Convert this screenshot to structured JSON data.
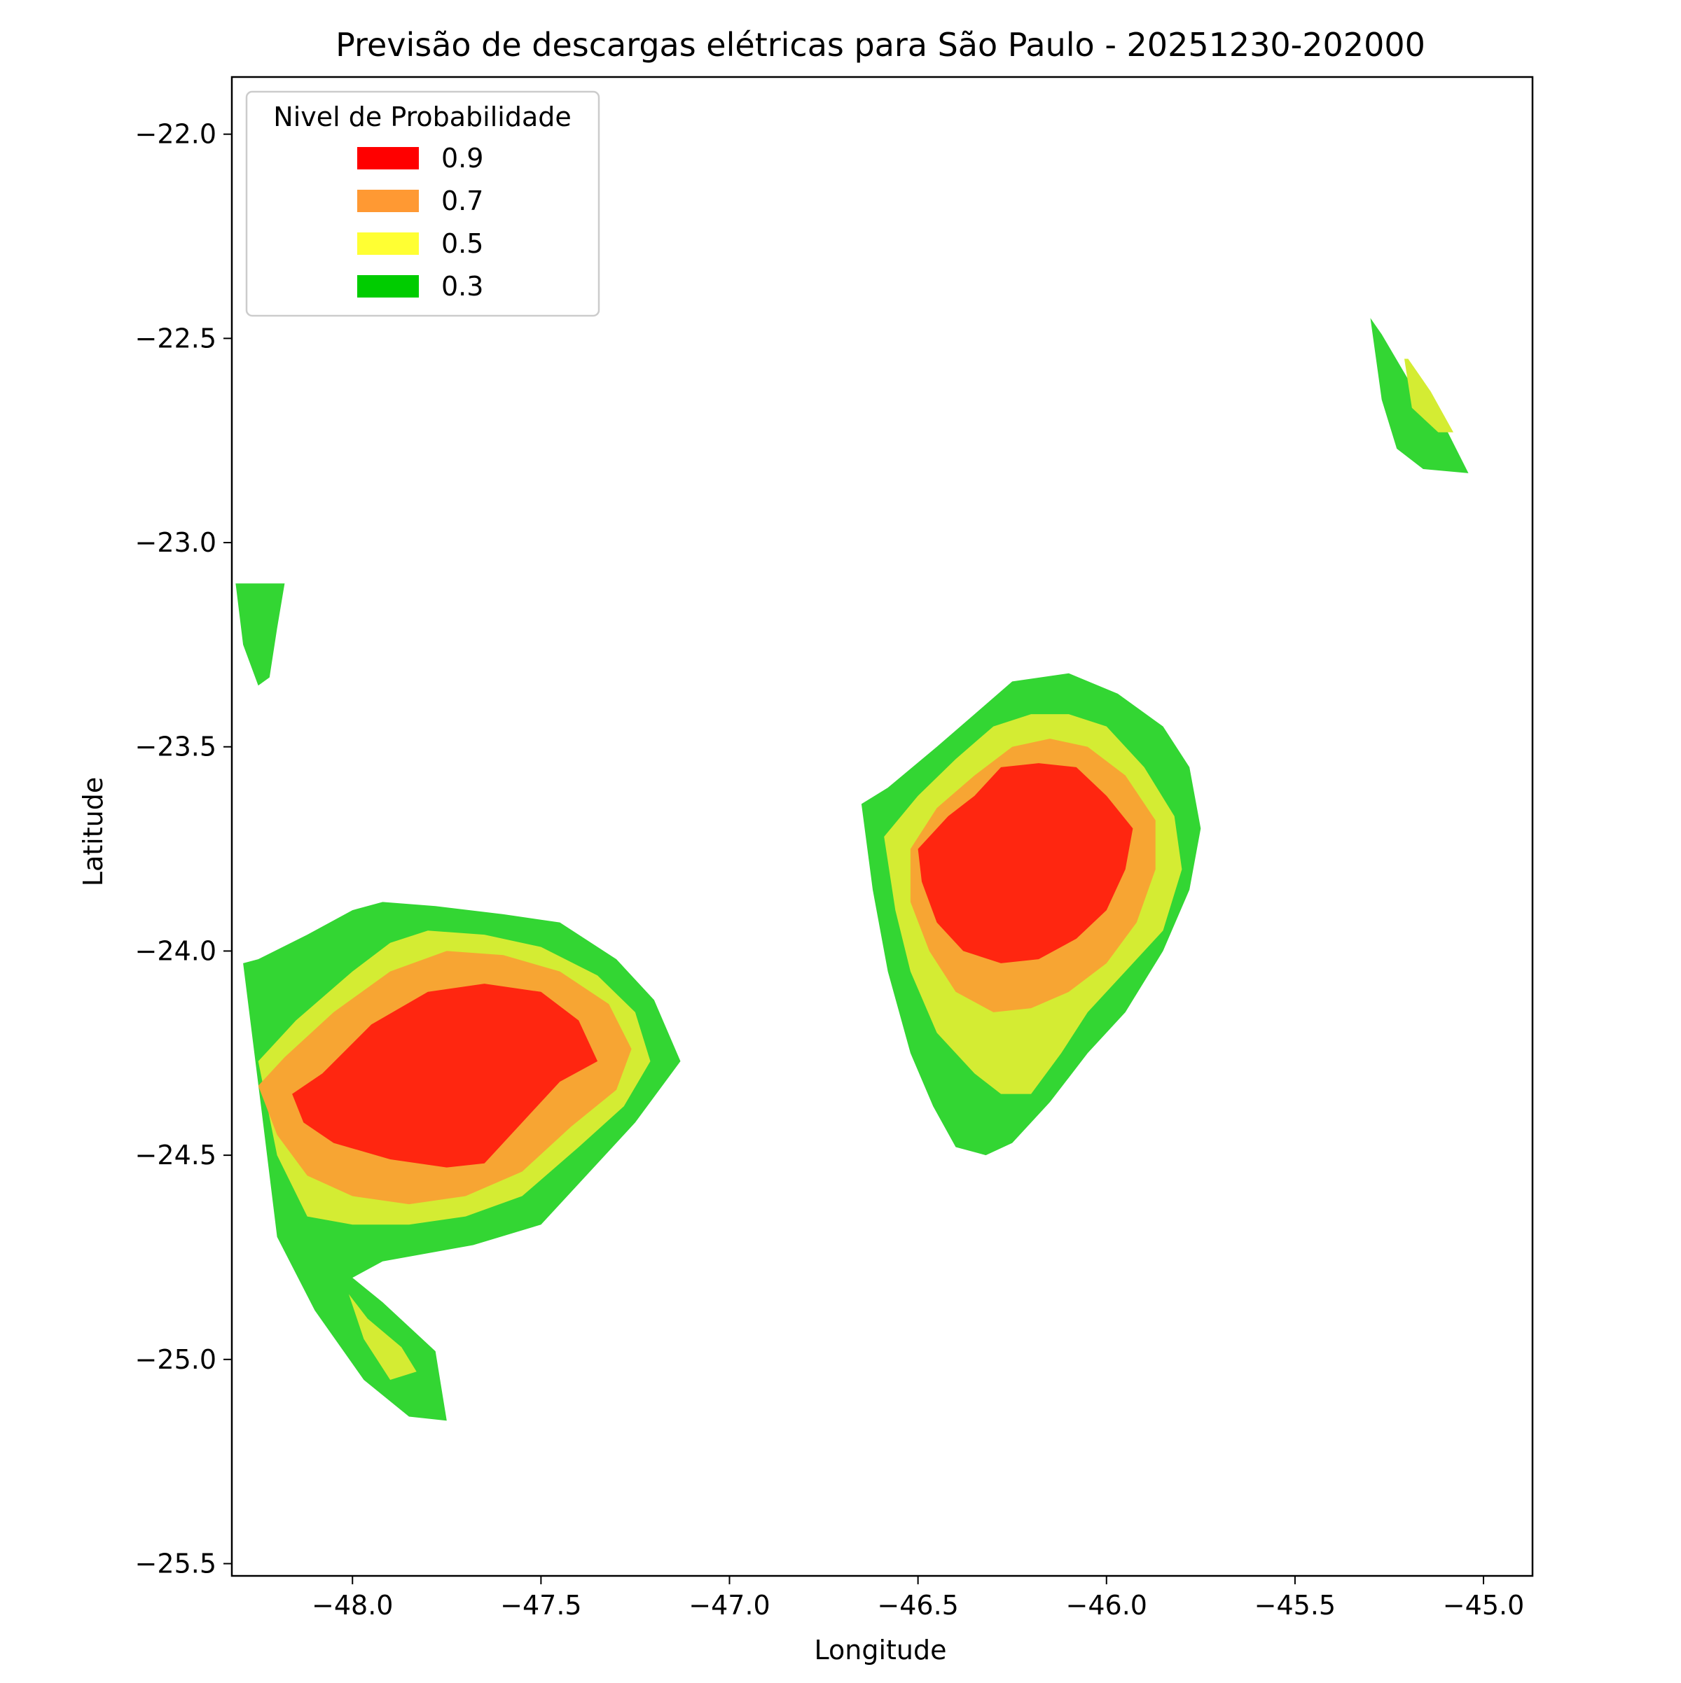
{
  "chart_data": {
    "type": "contourf",
    "title": "Previsão de descargas elétricas para São Paulo - 20251230-202000",
    "xlabel": "Longitude",
    "ylabel": "Latitude",
    "xlim": [
      -48.32,
      -44.87
    ],
    "ylim": [
      -25.53,
      -21.86
    ],
    "xticks": [
      -48.0,
      -47.5,
      -47.0,
      -46.5,
      -46.0,
      -45.5,
      -45.0
    ],
    "xtick_labels": [
      "−48.0",
      "−47.5",
      "−47.0",
      "−46.5",
      "−46.0",
      "−45.5",
      "−45.0"
    ],
    "yticks": [
      -22.0,
      -22.5,
      -23.0,
      -23.5,
      -24.0,
      -24.5,
      -25.0,
      -25.5
    ],
    "ytick_labels": [
      "−22.0",
      "−22.5",
      "−23.0",
      "−23.5",
      "−24.0",
      "−24.5",
      "−25.0",
      "−25.5"
    ],
    "grid": false,
    "legend": {
      "title": "Nivel de Probabilidade",
      "position": "upper-left",
      "entries": [
        {
          "label": "0.9",
          "color": "#ff0000"
        },
        {
          "label": "0.7",
          "color": "#ff9933"
        },
        {
          "label": "0.5",
          "color": "#ffff33"
        },
        {
          "label": "0.3",
          "color": "#00cc00"
        }
      ]
    },
    "fill_colors": {
      "0.3": "#33d633",
      "0.5": "#d4ec33",
      "0.7": "#f7a533",
      "0.9": "#ff2610"
    },
    "cells": [
      {
        "level": "0.3",
        "lon": [
          -48.31,
          -48.29,
          -48.25,
          -48.22,
          -48.2,
          -48.18
        ],
        "lat": [
          -23.1,
          -23.25,
          -23.35,
          -23.33,
          -23.21,
          -23.1
        ]
      },
      {
        "level": "0.3",
        "lon": [
          -45.3,
          -45.27,
          -45.23,
          -45.16,
          -45.04,
          -45.1,
          -45.2,
          -45.27
        ],
        "lat": [
          -22.45,
          -22.65,
          -22.77,
          -22.82,
          -22.83,
          -22.72,
          -22.6,
          -22.49
        ]
      },
      {
        "level": "0.5",
        "lon": [
          -45.21,
          -45.19,
          -45.12,
          -45.08,
          -45.14,
          -45.2
        ],
        "lat": [
          -22.55,
          -22.67,
          -22.73,
          -22.73,
          -22.63,
          -22.55
        ]
      },
      {
        "level": "0.3",
        "lon": [
          -48.29,
          -48.25,
          -48.12,
          -48.0,
          -47.92,
          -47.78,
          -47.6,
          -47.45,
          -47.3,
          -47.2,
          -47.13,
          -47.25,
          -47.38,
          -47.5,
          -47.68,
          -47.8,
          -47.92,
          -48.0,
          -47.92,
          -47.85,
          -47.78,
          -47.75,
          -47.85,
          -47.97,
          -48.1,
          -48.2,
          -48.24
        ],
        "lat": [
          -24.03,
          -24.02,
          -23.96,
          -23.9,
          -23.88,
          -23.89,
          -23.91,
          -23.93,
          -24.02,
          -24.12,
          -24.27,
          -24.42,
          -24.55,
          -24.67,
          -24.72,
          -24.74,
          -24.76,
          -24.8,
          -24.86,
          -24.92,
          -24.98,
          -25.15,
          -25.14,
          -25.05,
          -24.88,
          -24.7,
          -24.4
        ]
      },
      {
        "level": "0.5",
        "lon": [
          -48.25,
          -48.15,
          -48.0,
          -47.9,
          -47.8,
          -47.65,
          -47.5,
          -47.35,
          -47.25,
          -47.21,
          -47.28,
          -47.4,
          -47.55,
          -47.7,
          -47.85,
          -48.0,
          -48.12,
          -48.2
        ],
        "lat": [
          -24.27,
          -24.17,
          -24.05,
          -23.98,
          -23.95,
          -23.96,
          -23.99,
          -24.06,
          -24.15,
          -24.27,
          -24.38,
          -24.48,
          -24.6,
          -24.65,
          -24.67,
          -24.67,
          -24.65,
          -24.5
        ]
      },
      {
        "level": "0.5",
        "lon": [
          -48.01,
          -47.96,
          -47.87,
          -47.83,
          -47.9,
          -47.97
        ],
        "lat": [
          -24.84,
          -24.9,
          -24.97,
          -25.03,
          -25.05,
          -24.95
        ]
      },
      {
        "level": "0.7",
        "lon": [
          -48.25,
          -48.18,
          -48.05,
          -47.9,
          -47.75,
          -47.6,
          -47.45,
          -47.32,
          -47.26,
          -47.3,
          -47.42,
          -47.55,
          -47.7,
          -47.85,
          -48.0,
          -48.12,
          -48.2
        ],
        "lat": [
          -24.33,
          -24.26,
          -24.15,
          -24.05,
          -24.0,
          -24.01,
          -24.05,
          -24.13,
          -24.24,
          -24.34,
          -24.43,
          -24.54,
          -24.6,
          -24.62,
          -24.6,
          -24.55,
          -24.45
        ]
      },
      {
        "level": "0.9",
        "lon": [
          -48.16,
          -48.08,
          -47.95,
          -47.8,
          -47.65,
          -47.5,
          -47.4,
          -47.35,
          -47.45,
          -47.55,
          -47.65,
          -47.75,
          -47.9,
          -48.05,
          -48.13
        ],
        "lat": [
          -24.35,
          -24.3,
          -24.18,
          -24.1,
          -24.08,
          -24.1,
          -24.17,
          -24.27,
          -24.32,
          -24.42,
          -24.52,
          -24.53,
          -24.51,
          -24.47,
          -24.42
        ]
      },
      {
        "level": "0.3",
        "lon": [
          -46.65,
          -46.58,
          -46.45,
          -46.35,
          -46.25,
          -46.1,
          -45.97,
          -45.85,
          -45.78,
          -45.75,
          -45.78,
          -45.85,
          -45.95,
          -46.05,
          -46.15,
          -46.25,
          -46.32,
          -46.4,
          -46.46,
          -46.52,
          -46.58,
          -46.62
        ],
        "lat": [
          -23.64,
          -23.6,
          -23.5,
          -23.42,
          -23.34,
          -23.32,
          -23.37,
          -23.45,
          -23.55,
          -23.7,
          -23.85,
          -24.0,
          -24.15,
          -24.25,
          -24.37,
          -24.47,
          -24.5,
          -24.48,
          -24.38,
          -24.25,
          -24.05,
          -23.85
        ]
      },
      {
        "level": "0.5",
        "lon": [
          -46.59,
          -46.5,
          -46.4,
          -46.3,
          -46.2,
          -46.1,
          -46.0,
          -45.9,
          -45.82,
          -45.8,
          -45.85,
          -45.95,
          -46.05,
          -46.12,
          -46.2,
          -46.28,
          -46.35,
          -46.45,
          -46.52,
          -46.56
        ],
        "lat": [
          -23.72,
          -23.62,
          -23.53,
          -23.45,
          -23.42,
          -23.42,
          -23.45,
          -23.55,
          -23.67,
          -23.8,
          -23.95,
          -24.05,
          -24.15,
          -24.25,
          -24.35,
          -24.35,
          -24.3,
          -24.2,
          -24.05,
          -23.9
        ]
      },
      {
        "level": "0.7",
        "lon": [
          -46.52,
          -46.45,
          -46.35,
          -46.25,
          -46.15,
          -46.05,
          -45.95,
          -45.87,
          -45.87,
          -45.92,
          -46.0,
          -46.1,
          -46.2,
          -46.3,
          -46.4,
          -46.47,
          -46.52
        ],
        "lat": [
          -23.75,
          -23.65,
          -23.57,
          -23.5,
          -23.48,
          -23.5,
          -23.57,
          -23.68,
          -23.8,
          -23.93,
          -24.03,
          -24.1,
          -24.14,
          -24.15,
          -24.1,
          -24.0,
          -23.88
        ]
      },
      {
        "level": "0.9",
        "lon": [
          -46.5,
          -46.42,
          -46.35,
          -46.28,
          -46.18,
          -46.08,
          -46.0,
          -45.93,
          -45.95,
          -46.0,
          -46.08,
          -46.18,
          -46.28,
          -46.38,
          -46.45,
          -46.49
        ],
        "lat": [
          -23.75,
          -23.67,
          -23.62,
          -23.55,
          -23.54,
          -23.55,
          -23.62,
          -23.7,
          -23.8,
          -23.9,
          -23.97,
          -24.02,
          -24.03,
          -24.0,
          -23.93,
          -23.83
        ]
      }
    ]
  }
}
